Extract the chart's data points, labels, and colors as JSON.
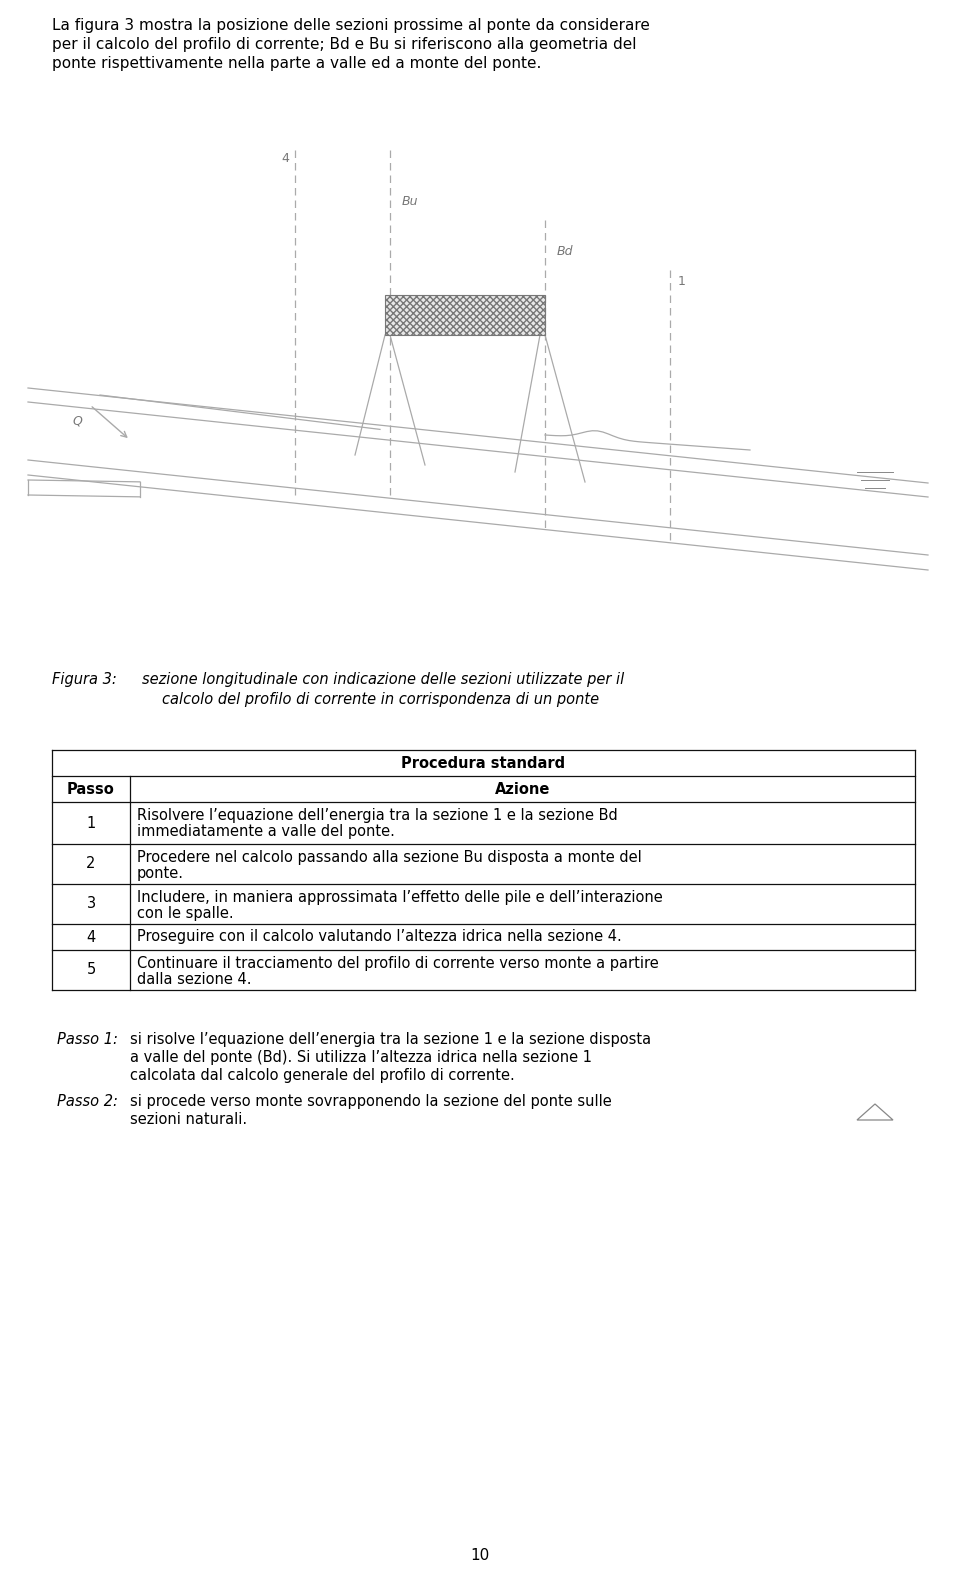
{
  "intro_text_lines": [
    "La figura 3 mostra la posizione delle sezioni prossime al ponte da considerare",
    "per il calcolo del profilo di corrente; Bd e Bu si riferiscono alla geometria del",
    "ponte rispettivamente nella parte a valle ed a monte del ponte."
  ],
  "table_title": "Procedura standard",
  "table_header_col1": "Passo",
  "table_header_col2": "Azione",
  "table_rows": [
    [
      "1",
      "Risolvere l’equazione dell’energia tra la sezione 1 e la sezione Bd\nimmediatamente a valle del ponte."
    ],
    [
      "2",
      "Procedere nel calcolo passando alla sezione Bu disposta a monte del\nponte."
    ],
    [
      "3",
      "Includere, in maniera approssimata l’effetto delle pile e dell’interazione\ncon le spalle."
    ],
    [
      "4",
      "Proseguire con il calcolo valutando l’altezza idrica nella sezione 4."
    ],
    [
      "5",
      "Continuare il tracciamento del profilo di corrente verso monte a partire\ndalla sezione 4."
    ]
  ],
  "passo1_label": "Passo 1:",
  "passo1_lines": [
    "si risolve l’equazione dell’energia tra la sezione 1 e la sezione disposta",
    "a valle del ponte (Bd). Si utilizza l’altezza idrica nella sezione 1",
    "calcolata dal calcolo generale del profilo di corrente."
  ],
  "passo2_label": "Passo 2:",
  "passo2_lines": [
    "si procede verso monte sovrapponendo la sezione del ponte sulle",
    "sezioni naturali."
  ],
  "page_number": "10",
  "bg_color": "#ffffff",
  "lc": "#aaaaaa",
  "lc_dark": "#888888"
}
